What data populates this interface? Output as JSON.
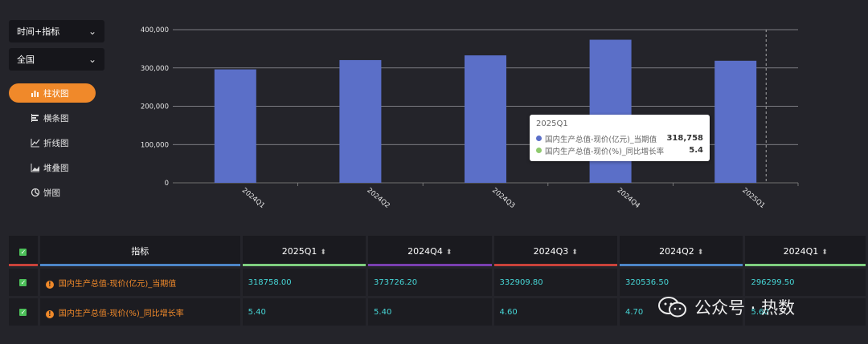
{
  "controls": {
    "dimension_select": "时间+指标",
    "region_select": "全国"
  },
  "chart_types": [
    {
      "label": "柱状图",
      "icon": "bar-chart-icon",
      "active": true
    },
    {
      "label": "横条图",
      "icon": "horizontal-bar-icon",
      "active": false
    },
    {
      "label": "折线图",
      "icon": "line-chart-icon",
      "active": false
    },
    {
      "label": "堆叠图",
      "icon": "stacked-chart-icon",
      "active": false
    },
    {
      "label": "饼图",
      "icon": "pie-chart-icon",
      "active": false
    }
  ],
  "chart_data": {
    "type": "bar",
    "categories": [
      "2024Q1",
      "2024Q2",
      "2024Q3",
      "2024Q4",
      "2025Q1"
    ],
    "series": [
      {
        "name": "国内生产总值-现价(亿元)_当期值",
        "values": [
          296299.5,
          320536.5,
          332909.8,
          373726.2,
          318758
        ],
        "color": "#5b6fc8"
      }
    ],
    "ylim": [
      0,
      400000
    ],
    "yticks": [
      "0",
      "100,000",
      "200,000",
      "300,000",
      "400,000"
    ],
    "grid": true,
    "highlight_category": "2025Q1"
  },
  "tooltip": {
    "title": "2025Q1",
    "rows": [
      {
        "name": "国内生产总值-现价(亿元)_当期值",
        "value": "318,758",
        "color": "#5b6fc8"
      },
      {
        "name": "国内生产总值-现价(%)_同比增长率",
        "value": "5.4",
        "color": "#8fca6e"
      }
    ]
  },
  "table": {
    "header_label": "指标",
    "columns": [
      {
        "label": "2025Q1",
        "color": "#7fcf7f"
      },
      {
        "label": "2024Q4",
        "color": "#7a3fb0"
      },
      {
        "label": "2024Q3",
        "color": "#c9423a"
      },
      {
        "label": "2024Q2",
        "color": "#4d86c8"
      },
      {
        "label": "2024Q1",
        "color": "#7fcf7f"
      }
    ],
    "rows": [
      {
        "name": "国内生产总值-现价(亿元)_当期值",
        "values": [
          "318758.00",
          "373726.20",
          "332909.80",
          "320536.50",
          "296299.50"
        ]
      },
      {
        "name": "国内生产总值-现价(%)_同比增长率",
        "values": [
          "5.40",
          "5.40",
          "4.60",
          "4.70",
          "5.60"
        ]
      }
    ],
    "check_bar_color": "#c9423a",
    "name_bar_color": "#4d86c8"
  },
  "watermark": "公众号 · 热数"
}
